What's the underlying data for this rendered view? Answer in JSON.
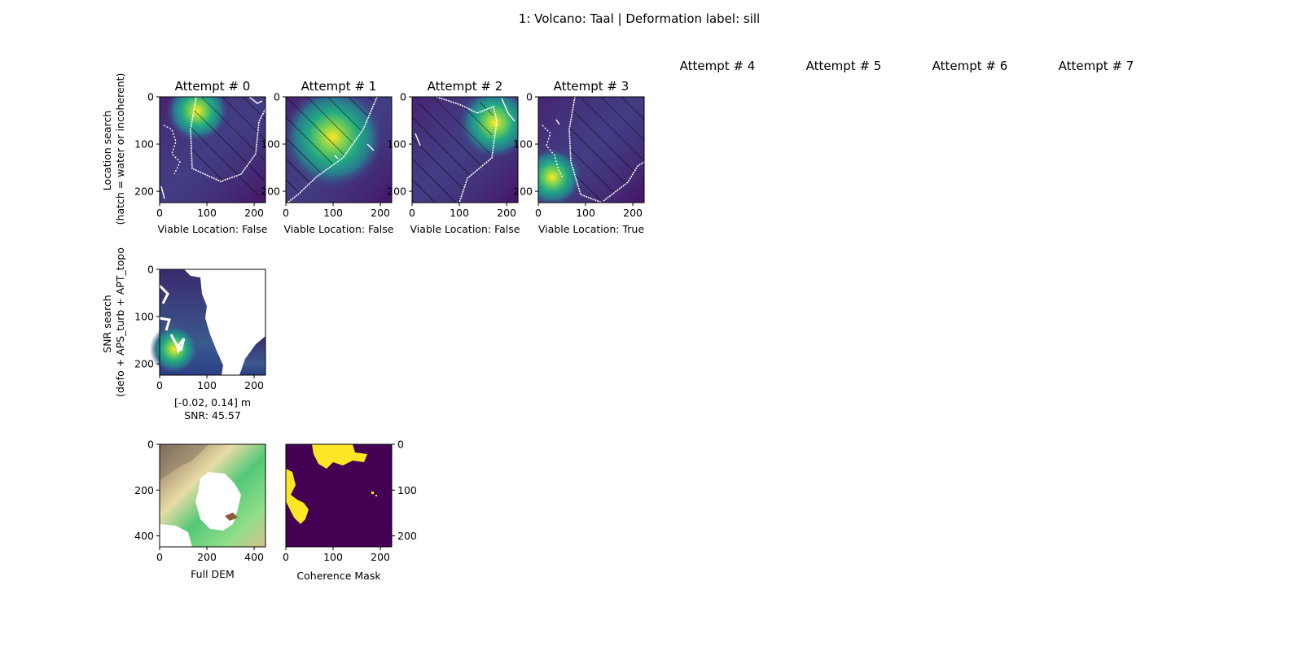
{
  "figure": {
    "suptitle": "1: Volcano: Taal | Deformation label: sill"
  },
  "rows": {
    "location_label": "Location search",
    "location_sublabel": "(hatch = water or incoherent)",
    "snr_label": "SNR search",
    "snr_sublabel": "(defo + APS_turb + APT_topo"
  },
  "colors": {
    "viridis_dark": "#440154",
    "viridis_mid": "#21918c",
    "viridis_bright": "#fde725",
    "coastline": "#ffffff"
  },
  "chart_data": [
    {
      "type": "heatmap",
      "title": "Attempt # 0",
      "xlabel": "Viable Location: False",
      "x_ticks": [
        "0",
        "100",
        "200"
      ],
      "y_ticks": [
        "0",
        "100",
        "200"
      ],
      "xlim": [
        0,
        224
      ],
      "ylim": [
        224,
        0
      ],
      "source_center": [
        80,
        30
      ],
      "viable": false
    },
    {
      "type": "heatmap",
      "title": "Attempt # 1",
      "xlabel": "Viable Location: False",
      "x_ticks": [
        "0",
        "100",
        "200"
      ],
      "y_ticks": [
        "0",
        "100",
        "200"
      ],
      "xlim": [
        0,
        224
      ],
      "ylim": [
        224,
        0
      ],
      "source_center": [
        100,
        85
      ],
      "viable": false
    },
    {
      "type": "heatmap",
      "title": "Attempt # 2",
      "xlabel": "Viable Location: False",
      "x_ticks": [
        "0",
        "100",
        "200"
      ],
      "y_ticks": [
        "0",
        "100",
        "200"
      ],
      "xlim": [
        0,
        224
      ],
      "ylim": [
        224,
        0
      ],
      "source_center": [
        175,
        55
      ],
      "viable": false
    },
    {
      "type": "heatmap",
      "title": "Attempt # 3",
      "xlabel": "Viable Location: True",
      "x_ticks": [
        "0",
        "100",
        "200"
      ],
      "y_ticks": [
        "0",
        "100",
        "200"
      ],
      "xlim": [
        0,
        224
      ],
      "ylim": [
        224,
        0
      ],
      "source_center": [
        30,
        170
      ],
      "viable": true
    },
    {
      "type": "heatmap",
      "title": "Attempt # 4",
      "empty": true
    },
    {
      "type": "heatmap",
      "title": "Attempt # 5",
      "empty": true
    },
    {
      "type": "heatmap",
      "title": "Attempt # 6",
      "empty": true
    },
    {
      "type": "heatmap",
      "title": "Attempt # 7",
      "empty": true
    },
    {
      "type": "heatmap",
      "title": "",
      "xlabel": "[-0.02, 0.14] m",
      "xlabel2": "SNR: 45.57",
      "x_ticks": [
        "0",
        "100",
        "200"
      ],
      "y_ticks": [
        "0",
        "100",
        "200"
      ],
      "xlim": [
        0,
        224
      ],
      "ylim": [
        224,
        0
      ],
      "value_range": [
        -0.02,
        0.14
      ],
      "units": "m",
      "snr": 45.57
    },
    {
      "type": "heatmap",
      "title": "",
      "xlabel": "Full DEM",
      "x_ticks": [
        "0",
        "200",
        "400"
      ],
      "y_ticks": [
        "0",
        "200",
        "400"
      ],
      "xlim": [
        0,
        448
      ],
      "ylim": [
        448,
        0
      ]
    },
    {
      "type": "heatmap",
      "title": "",
      "xlabel": "Coherence Mask",
      "x_ticks": [
        "0",
        "100",
        "200"
      ],
      "y_ticks": [
        "0",
        "100",
        "200"
      ],
      "xlim": [
        0,
        224
      ],
      "ylim": [
        224,
        0
      ],
      "y_axis_side": "right"
    }
  ]
}
